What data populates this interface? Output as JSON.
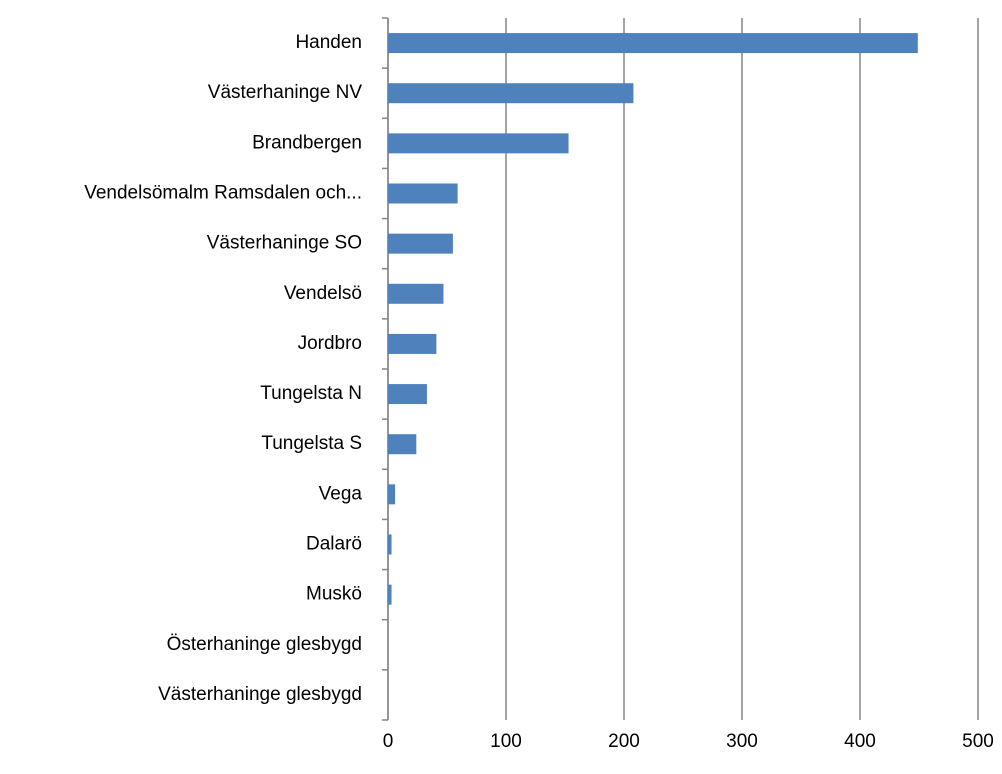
{
  "chart_data": {
    "type": "hbar",
    "categories": [
      "Handen",
      "Västerhaninge NV",
      "Brandbergen",
      "Vendelsömalm Ramsdalen och...",
      "Västerhaninge SO",
      "Vendelsö",
      "Jordbro",
      "Tungelsta N",
      "Tungelsta S",
      "Vega",
      "Dalarö",
      "Muskö",
      "Österhaninge glesbygd",
      "Västerhaninge glesbygd"
    ],
    "values": [
      449,
      208,
      153,
      59,
      55,
      47,
      41,
      33,
      24,
      6,
      3,
      3,
      0,
      0
    ],
    "color": "#4f81bd",
    "xlim": [
      0,
      500
    ],
    "xticks": [
      0,
      100,
      200,
      300,
      400,
      500
    ],
    "grid": true
  }
}
